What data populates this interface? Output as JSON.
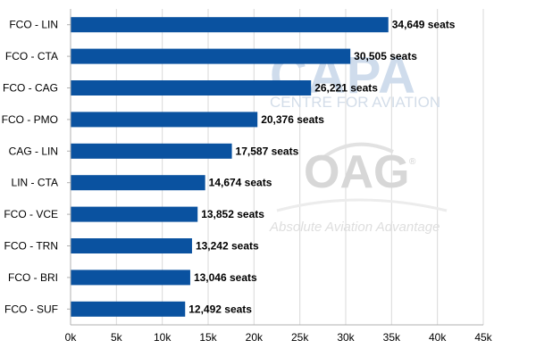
{
  "chart_data": {
    "type": "bar",
    "orientation": "horizontal",
    "categories": [
      "FCO - LIN",
      "FCO - CTA",
      "FCO - CAG",
      "FCO - PMO",
      "CAG - LIN",
      "LIN - CTA",
      "FCO - VCE",
      "FCO - TRN",
      "FCO - BRI",
      "FCO - SUF"
    ],
    "values": [
      34649,
      30505,
      26221,
      20376,
      17587,
      14674,
      13852,
      13242,
      13046,
      12492
    ],
    "data_labels": [
      "34,649 seats",
      "30,505 seats",
      "26,221 seats",
      "20,376 seats",
      "17,587 seats",
      "14,674 seats",
      "13,852 seats",
      "13,242 seats",
      "13,046 seats",
      "12,492 seats"
    ],
    "xlim": [
      0,
      45000
    ],
    "x_ticks": [
      0,
      5000,
      10000,
      15000,
      20000,
      25000,
      30000,
      35000,
      40000,
      45000
    ],
    "x_tick_labels": [
      "0k",
      "5k",
      "10k",
      "15k",
      "20k",
      "25k",
      "30k",
      "35k",
      "40k",
      "45k"
    ],
    "grid": "vertical",
    "bar_color": "#0a52a0",
    "title": "",
    "xlabel": "",
    "ylabel": ""
  },
  "watermarks": {
    "capa_logo": "CAPA",
    "capa_subtitle": "CENTRE FOR AVIATION",
    "oag_logo": "OAG",
    "oag_registered": "®",
    "oag_tagline": "Absolute Aviation Advantage"
  }
}
